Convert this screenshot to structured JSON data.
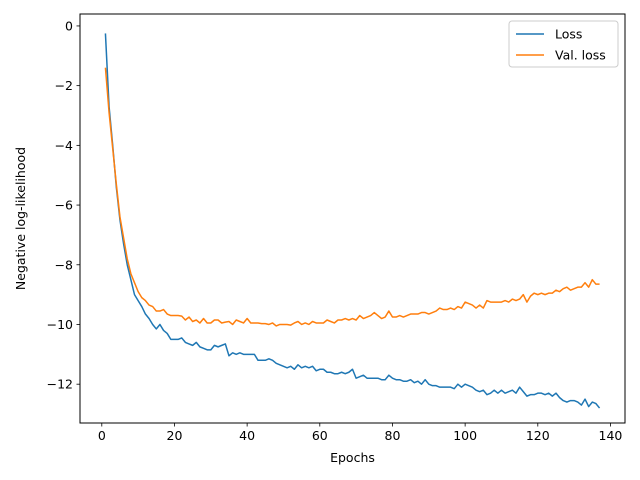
{
  "chart_data": {
    "type": "line",
    "xlabel": "Epochs",
    "ylabel": "Negative log-likelihood",
    "xlim": [
      -6,
      144
    ],
    "ylim": [
      -13.3,
      0.4
    ],
    "xticks": [
      0,
      20,
      40,
      60,
      80,
      100,
      120,
      140
    ],
    "yticks": [
      0,
      -2,
      -4,
      -6,
      -8,
      -10,
      -12
    ],
    "grid": false,
    "legend_placement": "top-right",
    "series": [
      {
        "name": "Loss",
        "color": "#1f77b4",
        "points": [
          [
            1,
            -0.25
          ],
          [
            2,
            -2.7
          ],
          [
            3,
            -4.0
          ],
          [
            4,
            -5.4
          ],
          [
            5,
            -6.5
          ],
          [
            6,
            -7.3
          ],
          [
            7,
            -8.0
          ],
          [
            8,
            -8.5
          ],
          [
            9,
            -9.0
          ],
          [
            10,
            -9.2
          ],
          [
            11,
            -9.4
          ],
          [
            12,
            -9.65
          ],
          [
            13,
            -9.8
          ],
          [
            14,
            -10.0
          ],
          [
            15,
            -10.15
          ],
          [
            16,
            -10.0
          ],
          [
            17,
            -10.2
          ],
          [
            18,
            -10.3
          ],
          [
            19,
            -10.5
          ],
          [
            20,
            -10.5
          ],
          [
            21,
            -10.5
          ],
          [
            22,
            -10.45
          ],
          [
            23,
            -10.6
          ],
          [
            24,
            -10.65
          ],
          [
            25,
            -10.7
          ],
          [
            26,
            -10.6
          ],
          [
            27,
            -10.75
          ],
          [
            28,
            -10.8
          ],
          [
            29,
            -10.85
          ],
          [
            30,
            -10.85
          ],
          [
            31,
            -10.7
          ],
          [
            32,
            -10.75
          ],
          [
            33,
            -10.7
          ],
          [
            34,
            -10.65
          ],
          [
            35,
            -11.05
          ],
          [
            36,
            -10.95
          ],
          [
            37,
            -11.0
          ],
          [
            38,
            -10.95
          ],
          [
            39,
            -11.0
          ],
          [
            40,
            -11.0
          ],
          [
            41,
            -11.0
          ],
          [
            42,
            -11.0
          ],
          [
            43,
            -11.2
          ],
          [
            44,
            -11.2
          ],
          [
            45,
            -11.2
          ],
          [
            46,
            -11.15
          ],
          [
            47,
            -11.2
          ],
          [
            48,
            -11.3
          ],
          [
            49,
            -11.35
          ],
          [
            50,
            -11.4
          ],
          [
            51,
            -11.45
          ],
          [
            52,
            -11.4
          ],
          [
            53,
            -11.5
          ],
          [
            54,
            -11.35
          ],
          [
            55,
            -11.45
          ],
          [
            56,
            -11.4
          ],
          [
            57,
            -11.45
          ],
          [
            58,
            -11.4
          ],
          [
            59,
            -11.55
          ],
          [
            60,
            -11.5
          ],
          [
            61,
            -11.5
          ],
          [
            62,
            -11.6
          ],
          [
            63,
            -11.6
          ],
          [
            64,
            -11.65
          ],
          [
            65,
            -11.65
          ],
          [
            66,
            -11.6
          ],
          [
            67,
            -11.65
          ],
          [
            68,
            -11.6
          ],
          [
            69,
            -11.5
          ],
          [
            70,
            -11.8
          ],
          [
            71,
            -11.75
          ],
          [
            72,
            -11.7
          ],
          [
            73,
            -11.8
          ],
          [
            74,
            -11.8
          ],
          [
            75,
            -11.8
          ],
          [
            76,
            -11.8
          ],
          [
            77,
            -11.85
          ],
          [
            78,
            -11.85
          ],
          [
            79,
            -11.7
          ],
          [
            80,
            -11.8
          ],
          [
            81,
            -11.85
          ],
          [
            82,
            -11.85
          ],
          [
            83,
            -11.9
          ],
          [
            84,
            -11.9
          ],
          [
            85,
            -11.85
          ],
          [
            86,
            -11.95
          ],
          [
            87,
            -11.9
          ],
          [
            88,
            -12.0
          ],
          [
            89,
            -11.85
          ],
          [
            90,
            -12.0
          ],
          [
            91,
            -12.05
          ],
          [
            92,
            -12.05
          ],
          [
            93,
            -12.1
          ],
          [
            94,
            -12.1
          ],
          [
            95,
            -12.1
          ],
          [
            96,
            -12.1
          ],
          [
            97,
            -12.15
          ],
          [
            98,
            -12.0
          ],
          [
            99,
            -12.1
          ],
          [
            100,
            -12.0
          ],
          [
            101,
            -12.05
          ],
          [
            102,
            -12.1
          ],
          [
            103,
            -12.2
          ],
          [
            104,
            -12.25
          ],
          [
            105,
            -12.2
          ],
          [
            106,
            -12.35
          ],
          [
            107,
            -12.3
          ],
          [
            108,
            -12.2
          ],
          [
            109,
            -12.3
          ],
          [
            110,
            -12.2
          ],
          [
            111,
            -12.3
          ],
          [
            112,
            -12.25
          ],
          [
            113,
            -12.2
          ],
          [
            114,
            -12.3
          ],
          [
            115,
            -12.1
          ],
          [
            116,
            -12.25
          ],
          [
            117,
            -12.4
          ],
          [
            118,
            -12.35
          ],
          [
            119,
            -12.35
          ],
          [
            120,
            -12.3
          ],
          [
            121,
            -12.3
          ],
          [
            122,
            -12.35
          ],
          [
            123,
            -12.3
          ],
          [
            124,
            -12.4
          ],
          [
            125,
            -12.3
          ],
          [
            126,
            -12.45
          ],
          [
            127,
            -12.55
          ],
          [
            128,
            -12.6
          ],
          [
            129,
            -12.55
          ],
          [
            130,
            -12.55
          ],
          [
            131,
            -12.6
          ],
          [
            132,
            -12.7
          ],
          [
            133,
            -12.5
          ],
          [
            134,
            -12.75
          ],
          [
            135,
            -12.6
          ],
          [
            136,
            -12.65
          ],
          [
            137,
            -12.8
          ]
        ]
      },
      {
        "name": "Val. loss",
        "color": "#ff7f0e",
        "points": [
          [
            1,
            -1.4
          ],
          [
            2,
            -2.9
          ],
          [
            3,
            -4.1
          ],
          [
            4,
            -5.3
          ],
          [
            5,
            -6.4
          ],
          [
            6,
            -7.1
          ],
          [
            7,
            -7.8
          ],
          [
            8,
            -8.3
          ],
          [
            9,
            -8.6
          ],
          [
            10,
            -8.9
          ],
          [
            11,
            -9.1
          ],
          [
            12,
            -9.2
          ],
          [
            13,
            -9.35
          ],
          [
            14,
            -9.4
          ],
          [
            15,
            -9.55
          ],
          [
            16,
            -9.55
          ],
          [
            17,
            -9.5
          ],
          [
            18,
            -9.65
          ],
          [
            19,
            -9.7
          ],
          [
            20,
            -9.7
          ],
          [
            21,
            -9.7
          ],
          [
            22,
            -9.72
          ],
          [
            23,
            -9.85
          ],
          [
            24,
            -9.75
          ],
          [
            25,
            -9.9
          ],
          [
            26,
            -9.85
          ],
          [
            27,
            -9.95
          ],
          [
            28,
            -9.8
          ],
          [
            29,
            -9.95
          ],
          [
            30,
            -9.95
          ],
          [
            31,
            -9.85
          ],
          [
            32,
            -9.85
          ],
          [
            33,
            -9.95
          ],
          [
            34,
            -9.92
          ],
          [
            35,
            -9.9
          ],
          [
            36,
            -10.0
          ],
          [
            37,
            -9.85
          ],
          [
            38,
            -9.9
          ],
          [
            39,
            -9.95
          ],
          [
            40,
            -9.8
          ],
          [
            41,
            -9.95
          ],
          [
            42,
            -9.95
          ],
          [
            43,
            -9.95
          ],
          [
            44,
            -9.97
          ],
          [
            45,
            -9.97
          ],
          [
            46,
            -10.0
          ],
          [
            47,
            -9.95
          ],
          [
            48,
            -10.05
          ],
          [
            49,
            -10.0
          ],
          [
            50,
            -10.0
          ],
          [
            51,
            -10.0
          ],
          [
            52,
            -10.02
          ],
          [
            53,
            -9.95
          ],
          [
            54,
            -9.9
          ],
          [
            55,
            -10.0
          ],
          [
            56,
            -9.95
          ],
          [
            57,
            -10.0
          ],
          [
            58,
            -9.9
          ],
          [
            59,
            -9.95
          ],
          [
            60,
            -9.95
          ],
          [
            61,
            -9.95
          ],
          [
            62,
            -9.85
          ],
          [
            63,
            -9.9
          ],
          [
            64,
            -9.95
          ],
          [
            65,
            -9.85
          ],
          [
            66,
            -9.85
          ],
          [
            67,
            -9.8
          ],
          [
            68,
            -9.85
          ],
          [
            69,
            -9.8
          ],
          [
            70,
            -9.85
          ],
          [
            71,
            -9.7
          ],
          [
            72,
            -9.8
          ],
          [
            73,
            -9.75
          ],
          [
            74,
            -9.7
          ],
          [
            75,
            -9.6
          ],
          [
            76,
            -9.7
          ],
          [
            77,
            -9.8
          ],
          [
            78,
            -9.75
          ],
          [
            79,
            -9.55
          ],
          [
            80,
            -9.75
          ],
          [
            81,
            -9.75
          ],
          [
            82,
            -9.7
          ],
          [
            83,
            -9.75
          ],
          [
            84,
            -9.7
          ],
          [
            85,
            -9.65
          ],
          [
            86,
            -9.65
          ],
          [
            87,
            -9.65
          ],
          [
            88,
            -9.6
          ],
          [
            89,
            -9.6
          ],
          [
            90,
            -9.65
          ],
          [
            91,
            -9.6
          ],
          [
            92,
            -9.55
          ],
          [
            93,
            -9.45
          ],
          [
            94,
            -9.5
          ],
          [
            95,
            -9.5
          ],
          [
            96,
            -9.45
          ],
          [
            97,
            -9.5
          ],
          [
            98,
            -9.4
          ],
          [
            99,
            -9.45
          ],
          [
            100,
            -9.25
          ],
          [
            101,
            -9.3
          ],
          [
            102,
            -9.35
          ],
          [
            103,
            -9.45
          ],
          [
            104,
            -9.35
          ],
          [
            105,
            -9.45
          ],
          [
            106,
            -9.2
          ],
          [
            107,
            -9.25
          ],
          [
            108,
            -9.25
          ],
          [
            109,
            -9.25
          ],
          [
            110,
            -9.25
          ],
          [
            111,
            -9.2
          ],
          [
            112,
            -9.25
          ],
          [
            113,
            -9.15
          ],
          [
            114,
            -9.2
          ],
          [
            115,
            -9.15
          ],
          [
            116,
            -9.0
          ],
          [
            117,
            -9.25
          ],
          [
            118,
            -9.05
          ],
          [
            119,
            -8.95
          ],
          [
            120,
            -9.0
          ],
          [
            121,
            -8.95
          ],
          [
            122,
            -9.0
          ],
          [
            123,
            -8.95
          ],
          [
            124,
            -8.95
          ],
          [
            125,
            -8.85
          ],
          [
            126,
            -8.9
          ],
          [
            127,
            -8.8
          ],
          [
            128,
            -8.75
          ],
          [
            129,
            -8.85
          ],
          [
            130,
            -8.8
          ],
          [
            131,
            -8.75
          ],
          [
            132,
            -8.75
          ],
          [
            133,
            -8.6
          ],
          [
            134,
            -8.75
          ],
          [
            135,
            -8.5
          ],
          [
            136,
            -8.65
          ],
          [
            137,
            -8.65
          ]
        ]
      }
    ]
  }
}
